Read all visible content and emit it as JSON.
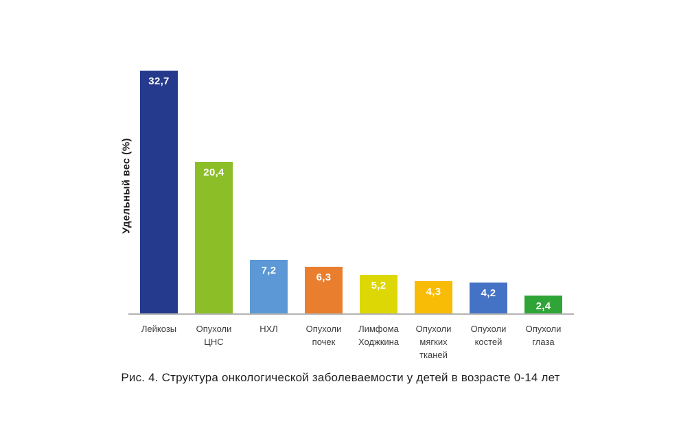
{
  "figure": {
    "caption": "Рис. 4. Структура онкологической заболеваемости у детей в возрасте 0-14 лет"
  },
  "chart_data": {
    "type": "bar",
    "title": "",
    "xlabel": "",
    "ylabel": "Удельный вес (%)",
    "ylim": [
      0,
      35
    ],
    "grid": false,
    "legend": false,
    "categories": [
      "Лейкозы",
      "Опухоли ЦНС",
      "НХЛ",
      "Опухоли почек",
      "Лимфома Ходжкина",
      "Опухоли мягких тканей",
      "Опухоли костей",
      "Опухоли глаза"
    ],
    "category_lines": [
      [
        "Лейкозы"
      ],
      [
        "Опухоли",
        "ЦНС"
      ],
      [
        "НХЛ"
      ],
      [
        "Опухоли",
        "почек"
      ],
      [
        "Лимфома",
        "Ходжкина"
      ],
      [
        "Опухоли",
        "мягких",
        "тканей"
      ],
      [
        "Опухоли",
        "костей"
      ],
      [
        "Опухоли",
        "глаза"
      ]
    ],
    "values": [
      32.7,
      20.4,
      7.2,
      6.3,
      5.2,
      4.3,
      4.2,
      2.4
    ],
    "value_labels": [
      "32,7",
      "20,4",
      "7,2",
      "6,3",
      "5,2",
      "4,3",
      "4,2",
      "2,4"
    ],
    "bar_colors": [
      "#253a8c",
      "#8cbe28",
      "#5b98d5",
      "#e87e2e",
      "#dcd705",
      "#f8bc06",
      "#4472c4",
      "#2fa437"
    ],
    "value_label_color": "#ffffff",
    "axis_line_color": "#b3b3b3"
  }
}
